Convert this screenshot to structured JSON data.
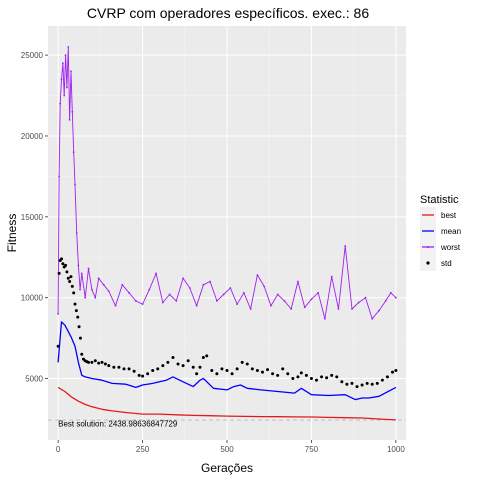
{
  "chart_data": {
    "type": "line",
    "title": "CVRP com operadores específicos. exec.: 86",
    "xlabel": "Gerações",
    "ylabel": "Fitness",
    "xlim": [
      -30,
      1030
    ],
    "ylim": [
      1200,
      26800
    ],
    "x_ticks": [
      0,
      250,
      500,
      750,
      1000
    ],
    "y_ticks": [
      5000,
      10000,
      15000,
      20000,
      25000
    ],
    "x_tick_labels": [
      "0",
      "250",
      "500",
      "750",
      "1000"
    ],
    "y_tick_labels": [
      "5000",
      "10000",
      "15000",
      "20000",
      "25000"
    ],
    "grid": true,
    "legend": {
      "title": "Statistic",
      "placement": "right",
      "entries": [
        {
          "label": "best",
          "color": "#e31a1c",
          "kind": "line"
        },
        {
          "label": "mean",
          "color": "#0000ff",
          "kind": "line"
        },
        {
          "label": "worst",
          "color": "#a020f0",
          "kind": "line-point"
        },
        {
          "label": "std",
          "color": "#000000",
          "kind": "point"
        }
      ]
    },
    "reference_line": {
      "y": 2438.98636847729,
      "color": "#bdbdbd",
      "style": "dashed"
    },
    "annotation": {
      "text": "Best solution: 2438.98636847729",
      "x": 0,
      "y": 2050
    },
    "series": [
      {
        "name": "best",
        "color": "#e31a1c",
        "x": [
          0,
          20,
          40,
          60,
          80,
          100,
          130,
          160,
          200,
          250,
          300,
          350,
          400,
          450,
          500,
          550,
          600,
          650,
          700,
          750,
          800,
          850,
          900,
          950,
          1000
        ],
        "values": [
          4450,
          4200,
          3850,
          3600,
          3400,
          3250,
          3100,
          3000,
          2900,
          2800,
          2800,
          2760,
          2720,
          2700,
          2680,
          2660,
          2650,
          2640,
          2630,
          2620,
          2600,
          2580,
          2560,
          2500,
          2440
        ]
      },
      {
        "name": "mean",
        "color": "#0000ff",
        "x": [
          0,
          10,
          20,
          30,
          40,
          50,
          60,
          70,
          80,
          100,
          130,
          160,
          200,
          230,
          250,
          280,
          300,
          320,
          340,
          370,
          400,
          420,
          430,
          460,
          500,
          520,
          540,
          560,
          600,
          650,
          700,
          720,
          750,
          800,
          850,
          880,
          900,
          920,
          950,
          1000
        ],
        "values": [
          6000,
          8500,
          8300,
          7900,
          7500,
          7000,
          6000,
          5200,
          5100,
          5000,
          4900,
          4700,
          4650,
          4450,
          4600,
          4700,
          4800,
          4900,
          5100,
          4800,
          4500,
          4900,
          5000,
          4400,
          4300,
          4500,
          4600,
          4400,
          4300,
          4200,
          4100,
          4400,
          4000,
          3950,
          4000,
          3700,
          3800,
          3800,
          3900,
          4450
        ]
      },
      {
        "name": "worst",
        "color": "#a020f0",
        "x": [
          0,
          3,
          6,
          10,
          14,
          18,
          22,
          26,
          30,
          34,
          38,
          42,
          46,
          50,
          55,
          60,
          65,
          70,
          80,
          90,
          100,
          110,
          120,
          135,
          150,
          170,
          190,
          210,
          230,
          250,
          270,
          290,
          310,
          330,
          350,
          370,
          390,
          410,
          430,
          450,
          470,
          490,
          510,
          530,
          550,
          570,
          590,
          610,
          630,
          650,
          670,
          690,
          710,
          730,
          750,
          770,
          790,
          810,
          830,
          850,
          870,
          890,
          910,
          930,
          950,
          970,
          985,
          1000
        ],
        "values": [
          9000,
          17500,
          22000,
          23500,
          24500,
          22500,
          25000,
          23000,
          25500,
          21000,
          24000,
          21500,
          19000,
          17000,
          14000,
          12000,
          10500,
          11500,
          10000,
          11800,
          10500,
          10000,
          11200,
          10800,
          10400,
          9500,
          10800,
          10300,
          9800,
          9600,
          10500,
          11500,
          9700,
          10200,
          9800,
          11200,
          10600,
          9500,
          10800,
          11000,
          9800,
          10200,
          10600,
          9600,
          10300,
          9300,
          11400,
          10700,
          9500,
          10200,
          9800,
          9300,
          11000,
          9400,
          9900,
          10300,
          8700,
          11300,
          9300,
          13200,
          9300,
          9700,
          10000,
          8700,
          9200,
          9800,
          10300,
          10000
        ]
      },
      {
        "name": "std",
        "color": "#000000",
        "x": [
          0,
          3,
          6,
          10,
          14,
          18,
          22,
          26,
          30,
          34,
          38,
          42,
          46,
          50,
          54,
          58,
          62,
          66,
          70,
          75,
          80,
          85,
          90,
          100,
          110,
          120,
          130,
          140,
          150,
          165,
          180,
          195,
          210,
          225,
          240,
          250,
          265,
          280,
          295,
          310,
          325,
          340,
          355,
          370,
          385,
          400,
          410,
          420,
          430,
          440,
          455,
          470,
          485,
          500,
          515,
          530,
          545,
          560,
          575,
          590,
          605,
          620,
          635,
          650,
          665,
          680,
          695,
          710,
          720,
          735,
          750,
          765,
          780,
          795,
          810,
          825,
          840,
          855,
          870,
          885,
          900,
          915,
          930,
          945,
          960,
          975,
          990,
          1000
        ],
        "values": [
          7000,
          11500,
          12300,
          12400,
          12100,
          11900,
          12000,
          11600,
          11200,
          11000,
          11300,
          10700,
          10300,
          9600,
          9200,
          8800,
          8200,
          7500,
          6500,
          6200,
          6100,
          6050,
          6000,
          6000,
          6100,
          5950,
          6000,
          5900,
          5800,
          5700,
          5700,
          5600,
          5600,
          5450,
          5200,
          5150,
          5300,
          5500,
          5600,
          5800,
          6000,
          6300,
          5900,
          5800,
          6100,
          5700,
          5300,
          5700,
          6300,
          6400,
          5500,
          5300,
          5600,
          5500,
          5300,
          5600,
          6000,
          5900,
          5600,
          5500,
          5400,
          5550,
          5300,
          5200,
          5600,
          5300,
          5000,
          5100,
          5350,
          5200,
          5000,
          4900,
          5100,
          5050,
          5200,
          5100,
          4800,
          4650,
          4700,
          4500,
          4600,
          4700,
          4650,
          4700,
          4900,
          5100,
          5400,
          5500
        ]
      }
    ]
  }
}
